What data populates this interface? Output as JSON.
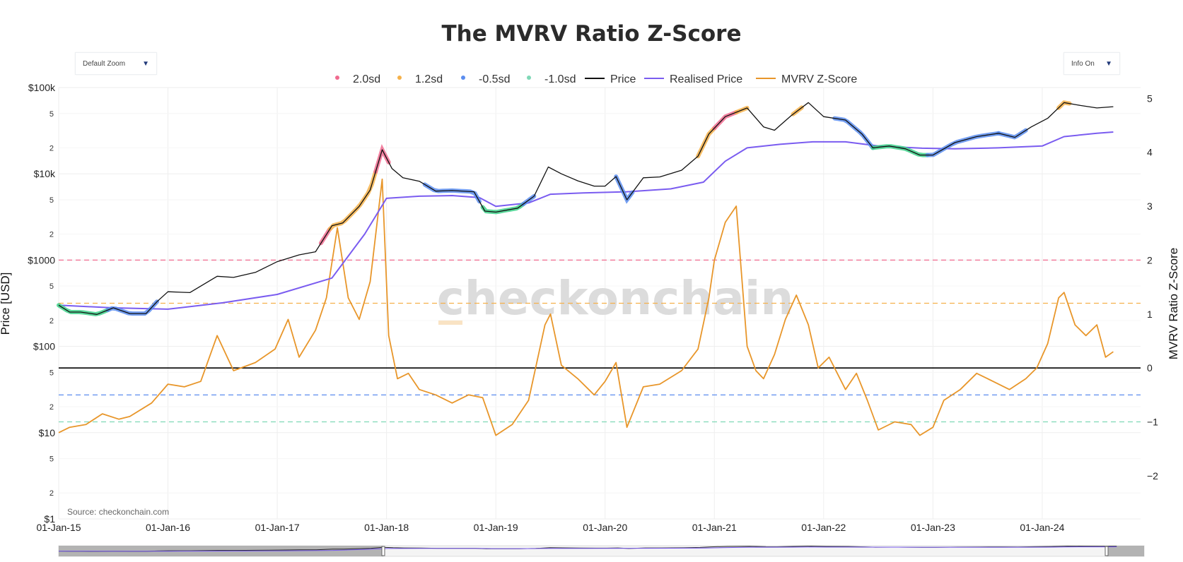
{
  "title": "The MVRV Ratio Z-Score",
  "controls": {
    "zoom_label": "Default Zoom",
    "info_label": "Info On",
    "arrow": "▼"
  },
  "legend": [
    {
      "label": "2.0sd",
      "kind": "dot",
      "color": "#f06b8f"
    },
    {
      "label": "1.2sd",
      "kind": "dot",
      "color": "#f5b14a"
    },
    {
      "label": "-0.5sd",
      "kind": "dot",
      "color": "#5b8def"
    },
    {
      "label": "-1.0sd",
      "kind": "dot",
      "color": "#7fd8b6"
    },
    {
      "label": "Price",
      "kind": "line",
      "color": "#111111"
    },
    {
      "label": "Realised Price",
      "kind": "line",
      "color": "#7a5cf0"
    },
    {
      "label": "MVRV Z-Score",
      "kind": "line",
      "color": "#e8962a"
    }
  ],
  "watermark": "checkonchain",
  "source": "Source: checkonchain.com",
  "chart_data": {
    "type": "line",
    "title": "The MVRV Ratio Z-Score",
    "xlabel": "",
    "ylabel_left": "Price [USD]",
    "ylabel_right": "MVRV Ratio Z-Score",
    "x_ticks": [
      "01-Jan-15",
      "01-Jan-16",
      "01-Jan-17",
      "01-Jan-18",
      "01-Jan-19",
      "01-Jan-20",
      "01-Jan-21",
      "01-Jan-22",
      "01-Jan-23",
      "01-Jan-24"
    ],
    "x_range": [
      2015.0,
      2024.9
    ],
    "left_axis": {
      "scale": "log",
      "range": [
        1,
        100000
      ],
      "major_ticks": [
        {
          "value": 1,
          "label": "$1"
        },
        {
          "value": 10,
          "label": "$10"
        },
        {
          "value": 100,
          "label": "$100"
        },
        {
          "value": 1000,
          "label": "$1000"
        },
        {
          "value": 10000,
          "label": "$10k"
        },
        {
          "value": 100000,
          "label": "$100k"
        }
      ],
      "minor_ticks": [
        {
          "value": 2,
          "label": "2"
        },
        {
          "value": 5,
          "label": "5"
        },
        {
          "value": 20,
          "label": "2"
        },
        {
          "value": 50,
          "label": "5"
        },
        {
          "value": 200,
          "label": "2"
        },
        {
          "value": 500,
          "label": "5"
        },
        {
          "value": 2000,
          "label": "2"
        },
        {
          "value": 5000,
          "label": "5"
        },
        {
          "value": 20000,
          "label": "2"
        },
        {
          "value": 50000,
          "label": "5"
        }
      ]
    },
    "right_axis": {
      "scale": "linear",
      "range": [
        -2.8,
        5.2
      ],
      "ticks": [
        {
          "value": 5,
          "label": "5"
        },
        {
          "value": 4,
          "label": "4"
        },
        {
          "value": 3,
          "label": "3"
        },
        {
          "value": 2,
          "label": "2"
        },
        {
          "value": 1,
          "label": "1"
        },
        {
          "value": 0,
          "label": "0"
        },
        {
          "value": -1,
          "label": "−1"
        },
        {
          "value": -2,
          "label": "−2"
        }
      ]
    },
    "bands": [
      {
        "name": "2.0sd",
        "value": 2.0,
        "color": "#f06b8f"
      },
      {
        "name": "1.2sd",
        "value": 1.2,
        "color": "#f5b14a"
      },
      {
        "name": "-0.5sd",
        "value": -0.5,
        "color": "#5b8def"
      },
      {
        "name": "-1.0sd",
        "value": -1.0,
        "color": "#7fd8b6"
      }
    ],
    "zero_line": 0,
    "series": [
      {
        "name": "Price",
        "axis": "left",
        "color": "#111111",
        "x": [
          2015.0,
          2015.1,
          2015.2,
          2015.35,
          2015.5,
          2015.65,
          2015.8,
          2015.9,
          2016.0,
          2016.2,
          2016.45,
          2016.6,
          2016.8,
          2017.0,
          2017.2,
          2017.35,
          2017.5,
          2017.6,
          2017.75,
          2017.85,
          2017.96,
          2018.05,
          2018.15,
          2018.3,
          2018.45,
          2018.6,
          2018.8,
          2018.9,
          2019.0,
          2019.2,
          2019.35,
          2019.48,
          2019.6,
          2019.75,
          2019.9,
          2020.0,
          2020.1,
          2020.2,
          2020.35,
          2020.5,
          2020.7,
          2020.85,
          2020.95,
          2021.1,
          2021.3,
          2021.45,
          2021.55,
          2021.7,
          2021.86,
          2022.0,
          2022.2,
          2022.35,
          2022.45,
          2022.6,
          2022.75,
          2022.88,
          2023.0,
          2023.2,
          2023.4,
          2023.6,
          2023.75,
          2023.9,
          2024.05,
          2024.2,
          2024.35,
          2024.5,
          2024.65
        ],
        "y": [
          300,
          250,
          250,
          235,
          280,
          240,
          240,
          330,
          430,
          420,
          650,
          630,
          720,
          960,
          1150,
          1250,
          2500,
          2700,
          4200,
          6500,
          19000,
          11500,
          9000,
          8200,
          6300,
          6400,
          6200,
          3700,
          3600,
          4000,
          5500,
          12000,
          10000,
          8300,
          7200,
          7200,
          9300,
          5000,
          9000,
          9200,
          11000,
          16000,
          29000,
          46000,
          58000,
          35000,
          32000,
          47000,
          67000,
          46000,
          42000,
          29000,
          20000,
          21000,
          19500,
          16500,
          16500,
          23000,
          27000,
          29500,
          26500,
          35000,
          44000,
          67000,
          62000,
          58000,
          60000
        ]
      },
      {
        "name": "Realised Price",
        "axis": "left",
        "color": "#7a5cf0",
        "x": [
          2015.0,
          2015.5,
          2016.0,
          2016.5,
          2017.0,
          2017.5,
          2017.8,
          2018.0,
          2018.3,
          2018.6,
          2018.85,
          2019.0,
          2019.3,
          2019.5,
          2019.8,
          2020.2,
          2020.6,
          2020.9,
          2021.1,
          2021.3,
          2021.6,
          2021.9,
          2022.2,
          2022.5,
          2022.9,
          2023.2,
          2023.6,
          2024.0,
          2024.2,
          2024.5,
          2024.65
        ],
        "y": [
          300,
          280,
          270,
          320,
          400,
          620,
          2000,
          5200,
          5500,
          5600,
          5300,
          4200,
          4600,
          5800,
          6000,
          6200,
          6700,
          8000,
          14000,
          20000,
          22000,
          23500,
          23500,
          21000,
          19800,
          19500,
          20000,
          21000,
          27000,
          29500,
          30500
        ]
      },
      {
        "name": "MVRV Z-Score",
        "axis": "right",
        "color": "#e8962a",
        "x": [
          2015.0,
          2015.1,
          2015.25,
          2015.4,
          2015.55,
          2015.65,
          2015.85,
          2016.0,
          2016.15,
          2016.3,
          2016.45,
          2016.6,
          2016.8,
          2016.98,
          2017.1,
          2017.2,
          2017.35,
          2017.45,
          2017.55,
          2017.65,
          2017.75,
          2017.85,
          2017.96,
          2018.02,
          2018.1,
          2018.2,
          2018.3,
          2018.45,
          2018.6,
          2018.75,
          2018.88,
          2019.0,
          2019.15,
          2019.3,
          2019.45,
          2019.5,
          2019.6,
          2019.75,
          2019.9,
          2020.0,
          2020.1,
          2020.2,
          2020.35,
          2020.5,
          2020.7,
          2020.85,
          2020.95,
          2021.0,
          2021.1,
          2021.2,
          2021.3,
          2021.38,
          2021.45,
          2021.55,
          2021.65,
          2021.75,
          2021.86,
          2021.95,
          2022.05,
          2022.2,
          2022.3,
          2022.4,
          2022.5,
          2022.65,
          2022.8,
          2022.88,
          2023.0,
          2023.1,
          2023.25,
          2023.4,
          2023.55,
          2023.7,
          2023.85,
          2023.95,
          2024.05,
          2024.15,
          2024.2,
          2024.3,
          2024.4,
          2024.5,
          2024.58,
          2024.65
        ],
        "y": [
          -1.2,
          -1.1,
          -1.05,
          -0.85,
          -0.95,
          -0.9,
          -0.65,
          -0.3,
          -0.35,
          -0.25,
          0.6,
          -0.05,
          0.1,
          0.35,
          0.9,
          0.2,
          0.7,
          1.3,
          2.6,
          1.3,
          0.9,
          1.6,
          3.5,
          0.6,
          -0.2,
          -0.1,
          -0.4,
          -0.5,
          -0.65,
          -0.5,
          -0.55,
          -1.25,
          -1.05,
          -0.6,
          0.8,
          1.0,
          0.05,
          -0.2,
          -0.5,
          -0.25,
          0.1,
          -1.1,
          -0.35,
          -0.3,
          -0.05,
          0.35,
          1.3,
          2.0,
          2.7,
          3.0,
          0.4,
          -0.05,
          -0.2,
          0.25,
          0.9,
          1.35,
          0.8,
          0.0,
          0.2,
          -0.4,
          -0.1,
          -0.6,
          -1.15,
          -1.0,
          -1.05,
          -1.25,
          -1.1,
          -0.6,
          -0.4,
          -0.1,
          -0.25,
          -0.4,
          -0.2,
          0.0,
          0.45,
          1.3,
          1.4,
          0.8,
          0.6,
          0.8,
          0.2,
          0.3
        ]
      }
    ],
    "highlight_segments": [
      {
        "band": "-1.0sd",
        "x": [
          2015.0,
          2015.45
        ],
        "color": "#3ed189"
      },
      {
        "band": "-0.5sd",
        "x": [
          2015.45,
          2015.9
        ],
        "color": "#5b8def"
      },
      {
        "band": "2.0sd",
        "x": [
          2017.4,
          2017.48
        ],
        "color": "#f06b8f"
      },
      {
        "band": "1.2sd",
        "x": [
          2017.48,
          2017.9
        ],
        "color": "#f5b14a"
      },
      {
        "band": "2.0sd",
        "x": [
          2017.9,
          2018.02
        ],
        "color": "#f06b8f"
      },
      {
        "band": "-0.5sd",
        "x": [
          2018.35,
          2018.85
        ],
        "color": "#5b8def"
      },
      {
        "band": "-1.0sd",
        "x": [
          2018.88,
          2019.25
        ],
        "color": "#3ed189"
      },
      {
        "band": "-0.5sd",
        "x": [
          2019.25,
          2019.35
        ],
        "color": "#5b8def"
      },
      {
        "band": "-0.5sd",
        "x": [
          2020.1,
          2020.25
        ],
        "color": "#5b8def"
      },
      {
        "band": "1.2sd",
        "x": [
          2020.85,
          2021.0
        ],
        "color": "#f5b14a"
      },
      {
        "band": "2.0sd",
        "x": [
          2021.0,
          2021.2
        ],
        "color": "#f06b8f"
      },
      {
        "band": "1.2sd",
        "x": [
          2021.2,
          2021.3
        ],
        "color": "#f5b14a"
      },
      {
        "band": "1.2sd",
        "x": [
          2021.72,
          2021.8
        ],
        "color": "#f5b14a"
      },
      {
        "band": "-0.5sd",
        "x": [
          2022.1,
          2022.45
        ],
        "color": "#5b8def"
      },
      {
        "band": "-1.0sd",
        "x": [
          2022.45,
          2022.95
        ],
        "color": "#3ed189"
      },
      {
        "band": "-0.5sd",
        "x": [
          2022.95,
          2023.6
        ],
        "color": "#5b8def"
      },
      {
        "band": "-0.5sd",
        "x": [
          2023.6,
          2023.85
        ],
        "color": "#5b8def"
      },
      {
        "band": "1.2sd",
        "x": [
          2024.15,
          2024.25
        ],
        "color": "#f5b14a"
      }
    ],
    "grid": true
  }
}
